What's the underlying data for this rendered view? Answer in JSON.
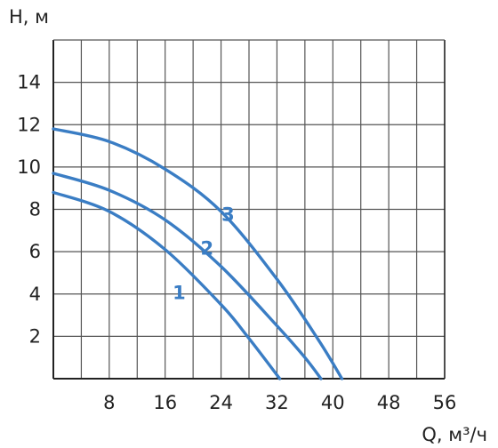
{
  "chart_data": {
    "type": "line",
    "ylabel": "H, м",
    "xlabel": "Q, м³/ч",
    "xlim": [
      0,
      56
    ],
    "ylim": [
      0,
      16
    ],
    "x_ticks": [
      8,
      16,
      24,
      32,
      40,
      48,
      56
    ],
    "y_ticks": [
      2,
      4,
      6,
      8,
      10,
      12,
      14
    ],
    "x_grid_step": 4,
    "y_grid_step": 2,
    "grid": true,
    "legend": "none",
    "colors": {
      "curve": "#3a7dc4",
      "grid": "#555555",
      "axis": "#222222"
    },
    "series": [
      {
        "label": "1",
        "x": [
          0,
          8,
          16,
          24,
          28,
          32.4
        ],
        "y": [
          8.8,
          7.9,
          6.1,
          3.5,
          1.9,
          0
        ],
        "label_at": [
          18,
          4.1
        ]
      },
      {
        "label": "2",
        "x": [
          0,
          8,
          16,
          24,
          32,
          36,
          38.3
        ],
        "y": [
          9.7,
          8.9,
          7.5,
          5.3,
          2.5,
          1.0,
          0
        ],
        "label_at": [
          22,
          6.2
        ]
      },
      {
        "label": "3",
        "x": [
          0,
          8,
          16,
          24,
          32,
          38,
          41.3
        ],
        "y": [
          11.8,
          11.2,
          9.9,
          7.9,
          4.7,
          1.8,
          0
        ],
        "label_at": [
          25,
          7.8
        ]
      }
    ]
  }
}
